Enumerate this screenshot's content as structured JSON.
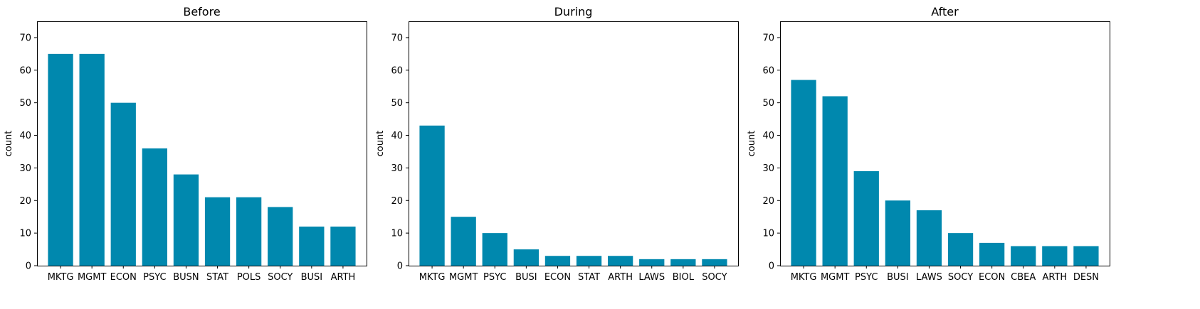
{
  "chart_data": [
    {
      "type": "bar",
      "title": "Before",
      "ylabel": "count",
      "ylim": [
        0,
        75
      ],
      "yticks": [
        0,
        10,
        20,
        30,
        40,
        50,
        60,
        70
      ],
      "categories": [
        "MKTG",
        "MGMT",
        "ECON",
        "PSYC",
        "BUSN",
        "STAT",
        "POLS",
        "SOCY",
        "BUSI",
        "ARTH"
      ],
      "values": [
        65,
        65,
        50,
        36,
        28,
        21,
        21,
        18,
        12,
        12
      ],
      "color": "#0088ae",
      "grid": false
    },
    {
      "type": "bar",
      "title": "During",
      "ylabel": "count",
      "ylim": [
        0,
        75
      ],
      "yticks": [
        0,
        10,
        20,
        30,
        40,
        50,
        60,
        70
      ],
      "categories": [
        "MKTG",
        "MGMT",
        "PSYC",
        "BUSI",
        "ECON",
        "STAT",
        "ARTH",
        "LAWS",
        "BIOL",
        "SOCY"
      ],
      "values": [
        43,
        15,
        10,
        5,
        3,
        3,
        3,
        2,
        2,
        2
      ],
      "color": "#0088ae",
      "grid": false
    },
    {
      "type": "bar",
      "title": "After",
      "ylabel": "count",
      "ylim": [
        0,
        75
      ],
      "yticks": [
        0,
        10,
        20,
        30,
        40,
        50,
        60,
        70
      ],
      "categories": [
        "MKTG",
        "MGMT",
        "PSYC",
        "BUSI",
        "LAWS",
        "SOCY",
        "ECON",
        "CBEA",
        "ARTH",
        "DESN"
      ],
      "values": [
        57,
        52,
        29,
        20,
        17,
        10,
        7,
        6,
        6,
        6
      ],
      "color": "#0088ae",
      "grid": false
    }
  ]
}
